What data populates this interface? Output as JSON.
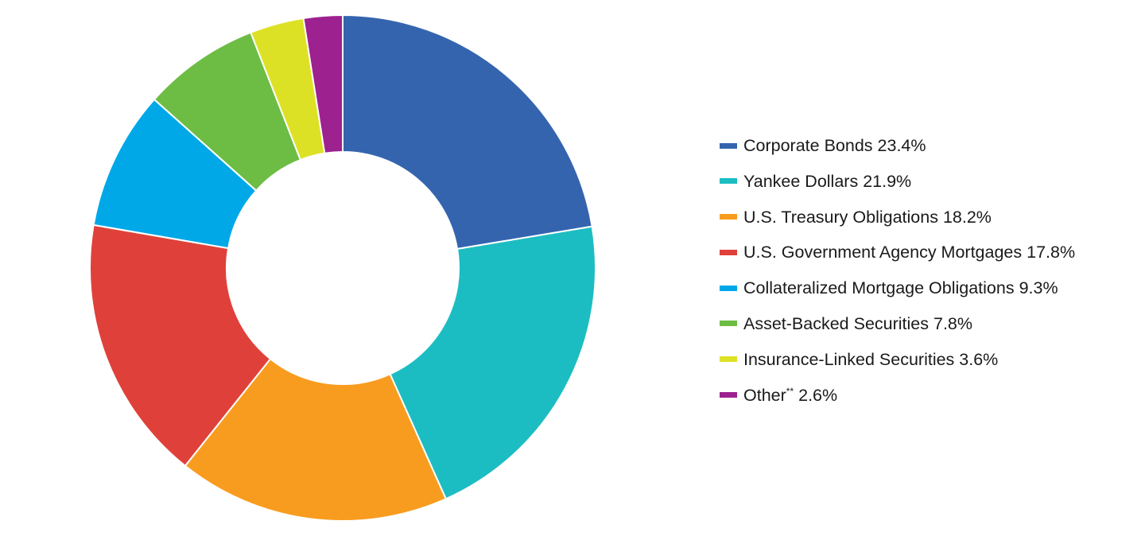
{
  "chart_data": {
    "type": "pie",
    "style": "donut",
    "unit": "%",
    "legend_position": "right",
    "series": [
      {
        "label": "Corporate Bonds",
        "value": 23.4,
        "display": "23.4%",
        "color": "#3564AF"
      },
      {
        "label": "Yankee Dollars",
        "value": 21.9,
        "display": "21.9%",
        "color": "#1CBDC2"
      },
      {
        "label": "U.S. Treasury Obligations",
        "value": 18.2,
        "display": "18.2%",
        "color": "#F89C1F"
      },
      {
        "label": "U.S. Government Agency Mortgages",
        "value": 17.8,
        "display": "17.8%",
        "color": "#DF413A"
      },
      {
        "label": "Collateralized Mortgage Obligations",
        "value": 9.3,
        "display": "9.3%",
        "color": "#00A8E8"
      },
      {
        "label": "Asset-Backed Securities",
        "value": 7.8,
        "display": "7.8%",
        "color": "#6DBC44"
      },
      {
        "label": "Insurance-Linked Securities",
        "value": 3.6,
        "display": "3.6%",
        "color": "#DDE125"
      },
      {
        "label": "Other",
        "label_note": "**",
        "value": 2.6,
        "display": "2.6%",
        "color": "#9D218F"
      }
    ]
  }
}
